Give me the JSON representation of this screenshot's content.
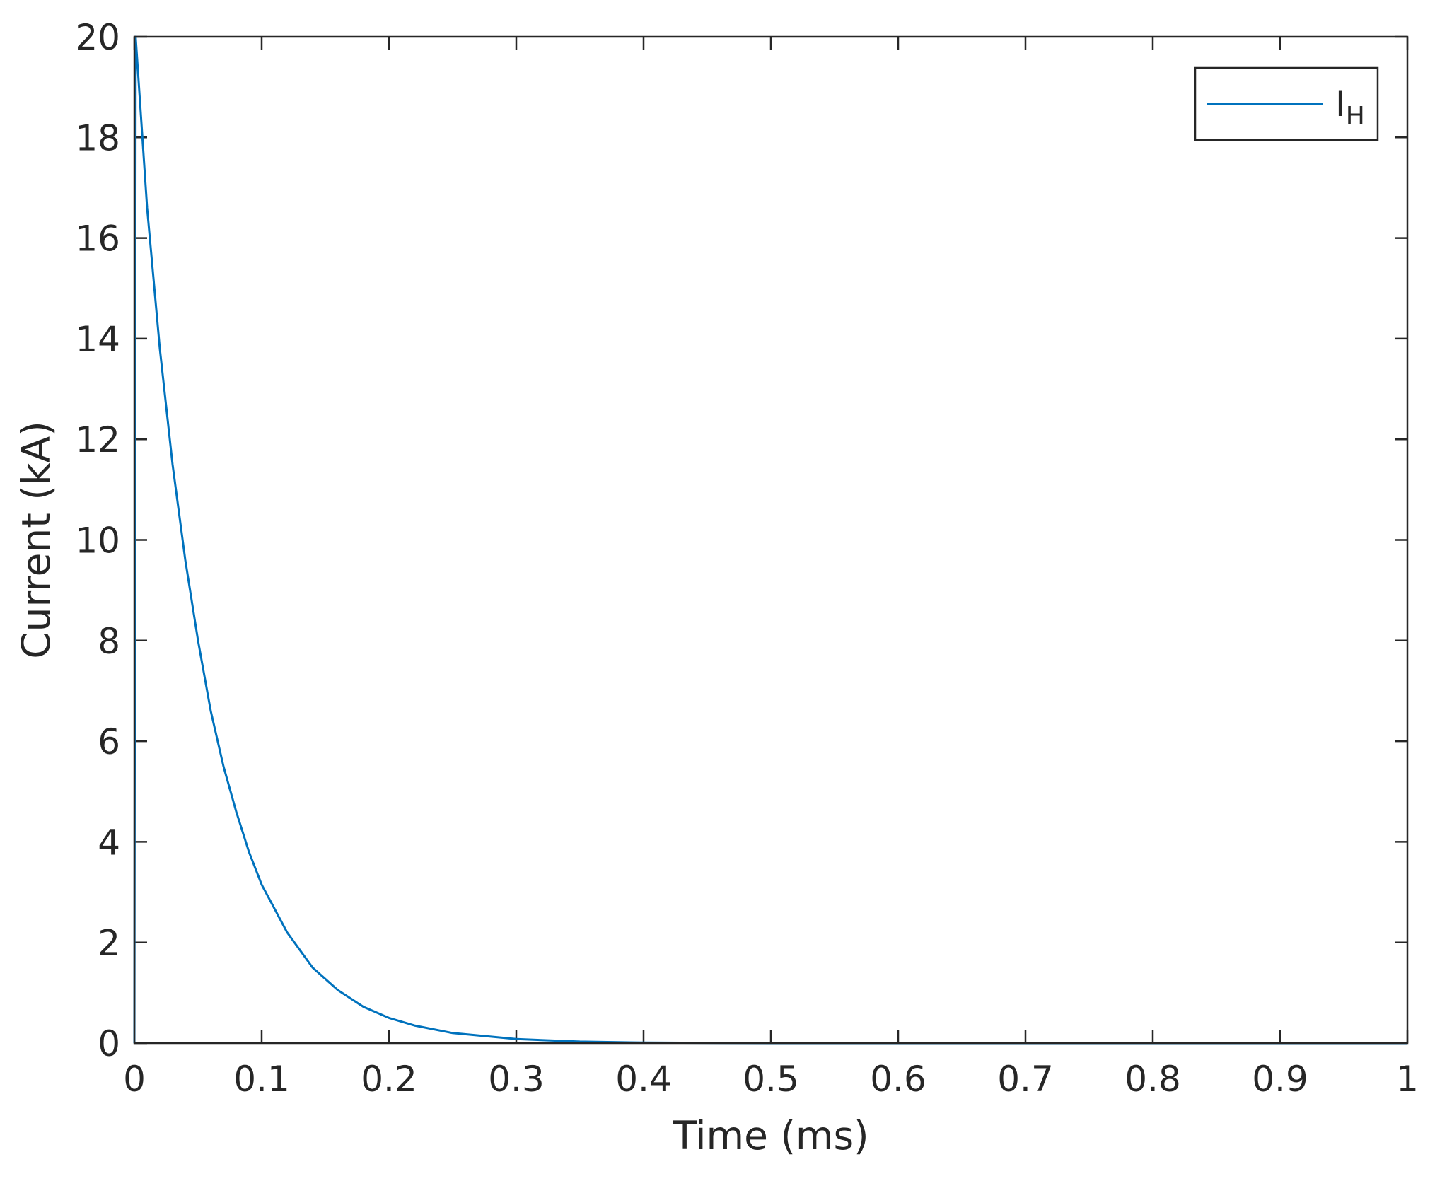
{
  "chart_data": {
    "type": "line",
    "title": "",
    "xlabel": "Time (ms)",
    "ylabel": "Current (kA)",
    "xlim": [
      0,
      1
    ],
    "ylim": [
      0,
      20
    ],
    "x_ticks": [
      0,
      0.1,
      0.2,
      0.3,
      0.4,
      0.5,
      0.6,
      0.7,
      0.8,
      0.9,
      1
    ],
    "x_tick_labels": [
      "0",
      "0.1",
      "0.2",
      "0.3",
      "0.4",
      "0.5",
      "0.6",
      "0.7",
      "0.8",
      "0.9",
      "1"
    ],
    "y_ticks": [
      0,
      2,
      4,
      6,
      8,
      10,
      12,
      14,
      16,
      18,
      20
    ],
    "y_tick_labels": [
      "0",
      "2",
      "4",
      "6",
      "8",
      "10",
      "12",
      "14",
      "16",
      "18",
      "20"
    ],
    "grid": false,
    "legend_position": "top-right",
    "series": [
      {
        "name": "I_H",
        "legend_main": "I",
        "legend_sub": "H",
        "color": "#0072BD",
        "x": [
          0,
          0.001,
          0.01,
          0.02,
          0.03,
          0.04,
          0.05,
          0.06,
          0.07,
          0.08,
          0.09,
          0.1,
          0.12,
          0.14,
          0.16,
          0.18,
          0.2,
          0.22,
          0.25,
          0.3,
          0.35,
          0.4,
          0.5,
          0.6,
          0.7,
          0.8,
          0.9,
          1.0
        ],
        "y": [
          0,
          20,
          16.6,
          13.8,
          11.5,
          9.6,
          8.0,
          6.6,
          5.5,
          4.6,
          3.8,
          3.15,
          2.2,
          1.5,
          1.05,
          0.72,
          0.5,
          0.35,
          0.2,
          0.08,
          0.03,
          0.01,
          0,
          0,
          0,
          0,
          0,
          0
        ]
      }
    ]
  }
}
